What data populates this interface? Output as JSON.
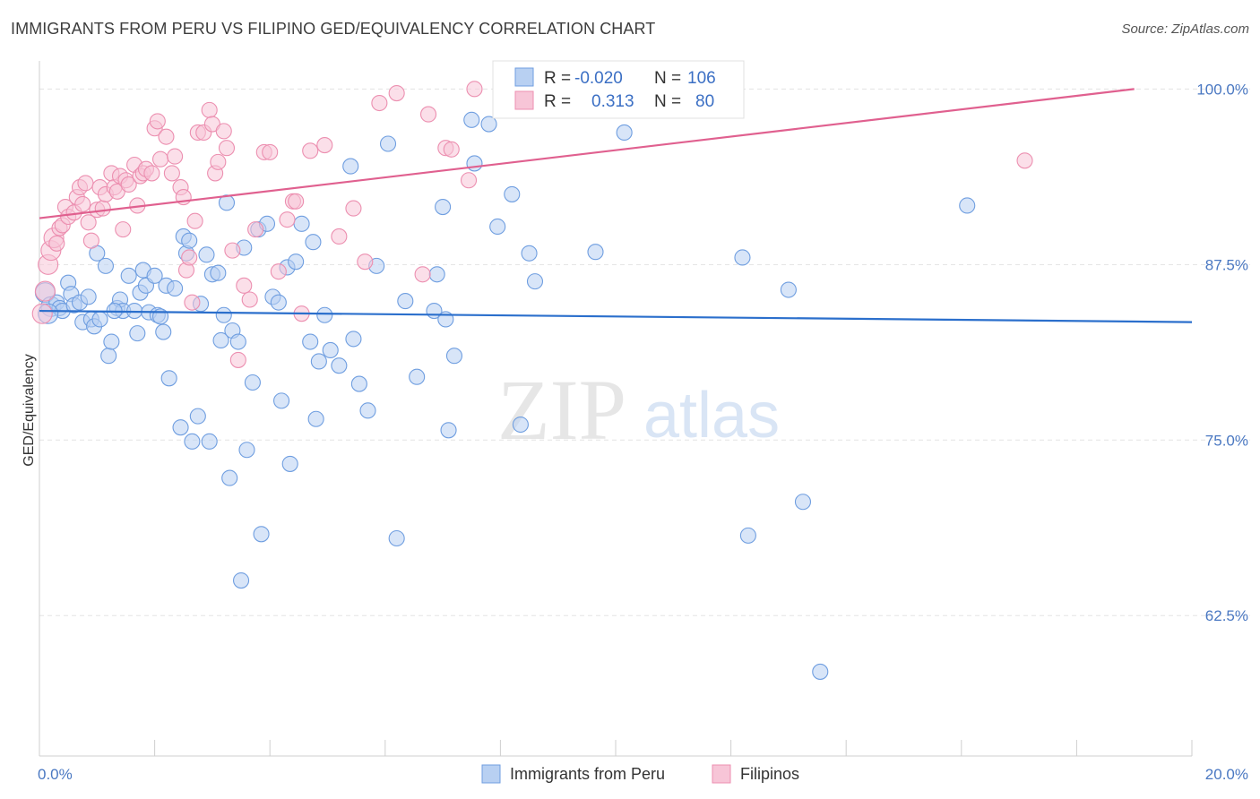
{
  "title": "IMMIGRANTS FROM PERU VS FILIPINO GED/EQUIVALENCY CORRELATION CHART",
  "source": "Source: ZipAtlas.com",
  "watermark": {
    "zip": "ZIP",
    "atlas": "atlas"
  },
  "chart_data": {
    "type": "scatter",
    "title": "IMMIGRANTS FROM PERU VS FILIPINO GED/EQUIVALENCY CORRELATION CHART",
    "xlabel": "",
    "ylabel": "GED/Equivalency",
    "xlim": [
      0,
      20
    ],
    "ylim": [
      52.5,
      102
    ],
    "x_tick_labels": [
      {
        "value": 0,
        "label": "0.0%"
      },
      {
        "value": 20,
        "label": "20.0%"
      }
    ],
    "y_tick_labels": [
      {
        "value": 100,
        "label": "100.0%"
      },
      {
        "value": 87.5,
        "label": "87.5%"
      },
      {
        "value": 75,
        "label": "75.0%"
      },
      {
        "value": 62.5,
        "label": "62.5%"
      }
    ],
    "legend": [
      {
        "r_label": "R =",
        "r_value": "-0.020",
        "n_label": "N =",
        "n_value": "106"
      },
      {
        "r_label": "R =",
        "r_value": "0.313",
        "n_label": "N =",
        "n_value": "80"
      }
    ],
    "series": [
      {
        "name": "Immigrants from Peru",
        "color": "#6f9ee0",
        "fill": "#b8d0f2",
        "trend": {
          "x0": 0,
          "y0": 84.2,
          "x1": 20,
          "y1": 83.4,
          "color": "#2b6fcc"
        },
        "points": [
          [
            0.1,
            85.5
          ],
          [
            0.2,
            84.5
          ],
          [
            0.3,
            84.8
          ],
          [
            0.35,
            84.4
          ],
          [
            0.4,
            84.2
          ],
          [
            0.5,
            86.2
          ],
          [
            0.55,
            85.4
          ],
          [
            0.6,
            84.6
          ],
          [
            0.7,
            84.8
          ],
          [
            0.75,
            83.4
          ],
          [
            0.85,
            85.2
          ],
          [
            0.9,
            83.6
          ],
          [
            0.95,
            83.1
          ],
          [
            1.0,
            88.3
          ],
          [
            1.05,
            83.6
          ],
          [
            1.15,
            87.4
          ],
          [
            1.2,
            81.0
          ],
          [
            1.25,
            82.0
          ],
          [
            1.35,
            84.4
          ],
          [
            1.4,
            85.0
          ],
          [
            1.45,
            84.2
          ],
          [
            1.55,
            86.7
          ],
          [
            1.65,
            84.2
          ],
          [
            1.7,
            82.6
          ],
          [
            1.75,
            85.5
          ],
          [
            1.8,
            87.1
          ],
          [
            1.85,
            86.0
          ],
          [
            1.9,
            84.1
          ],
          [
            2.0,
            86.7
          ],
          [
            2.05,
            83.9
          ],
          [
            2.1,
            83.8
          ],
          [
            2.15,
            82.7
          ],
          [
            2.2,
            86.0
          ],
          [
            2.25,
            79.4
          ],
          [
            2.35,
            85.8
          ],
          [
            2.45,
            75.9
          ],
          [
            2.5,
            89.5
          ],
          [
            2.55,
            88.3
          ],
          [
            2.6,
            89.2
          ],
          [
            2.65,
            74.9
          ],
          [
            2.75,
            76.7
          ],
          [
            2.8,
            84.7
          ],
          [
            2.9,
            88.2
          ],
          [
            2.95,
            74.9
          ],
          [
            3.0,
            86.8
          ],
          [
            3.1,
            86.9
          ],
          [
            3.15,
            82.1
          ],
          [
            3.2,
            83.9
          ],
          [
            3.25,
            91.9
          ],
          [
            3.3,
            72.3
          ],
          [
            3.35,
            82.8
          ],
          [
            3.45,
            82.0
          ],
          [
            3.55,
            88.7
          ],
          [
            3.6,
            74.3
          ],
          [
            3.7,
            79.1
          ],
          [
            3.8,
            90.0
          ],
          [
            3.85,
            68.3
          ],
          [
            3.95,
            90.4
          ],
          [
            4.05,
            85.2
          ],
          [
            4.15,
            84.8
          ],
          [
            4.2,
            77.8
          ],
          [
            4.3,
            87.3
          ],
          [
            4.35,
            73.3
          ],
          [
            4.45,
            87.7
          ],
          [
            4.55,
            90.4
          ],
          [
            4.7,
            82.0
          ],
          [
            4.75,
            89.1
          ],
          [
            4.8,
            76.5
          ],
          [
            4.85,
            80.6
          ],
          [
            4.95,
            83.9
          ],
          [
            5.05,
            81.4
          ],
          [
            5.2,
            80.3
          ],
          [
            5.4,
            94.5
          ],
          [
            5.45,
            82.2
          ],
          [
            5.55,
            79.0
          ],
          [
            5.7,
            77.1
          ],
          [
            5.85,
            87.4
          ],
          [
            6.05,
            96.1
          ],
          [
            6.2,
            68.0
          ],
          [
            6.35,
            84.9
          ],
          [
            6.55,
            79.5
          ],
          [
            6.85,
            84.2
          ],
          [
            6.9,
            86.8
          ],
          [
            7.0,
            91.6
          ],
          [
            7.05,
            83.6
          ],
          [
            7.1,
            75.7
          ],
          [
            7.2,
            81.0
          ],
          [
            7.5,
            97.8
          ],
          [
            7.55,
            94.7
          ],
          [
            7.8,
            97.5
          ],
          [
            7.95,
            90.2
          ],
          [
            8.2,
            92.5
          ],
          [
            8.35,
            76.1
          ],
          [
            8.5,
            88.3
          ],
          [
            8.6,
            86.3
          ],
          [
            9.65,
            88.4
          ],
          [
            10.15,
            96.9
          ],
          [
            3.5,
            65.0
          ],
          [
            12.2,
            88.0
          ],
          [
            12.3,
            68.2
          ],
          [
            13.0,
            85.7
          ],
          [
            13.25,
            70.6
          ],
          [
            13.55,
            58.5
          ],
          [
            16.1,
            91.7
          ],
          [
            0.15,
            84.0
          ],
          [
            1.3,
            84.2
          ]
        ]
      },
      {
        "name": "Filipinos",
        "color": "#ec8fb0",
        "fill": "#f7c5d7",
        "trend": {
          "x0": 0,
          "y0": 90.8,
          "x1": 19,
          "y1": 100.0,
          "color": "#e0608f"
        },
        "points": [
          [
            0.05,
            84.0
          ],
          [
            0.1,
            85.6
          ],
          [
            0.15,
            87.5
          ],
          [
            0.2,
            88.5
          ],
          [
            0.25,
            89.4
          ],
          [
            0.3,
            89.0
          ],
          [
            0.35,
            90.1
          ],
          [
            0.4,
            90.3
          ],
          [
            0.45,
            91.6
          ],
          [
            0.5,
            90.9
          ],
          [
            0.6,
            91.2
          ],
          [
            0.65,
            92.3
          ],
          [
            0.7,
            93.0
          ],
          [
            0.75,
            91.8
          ],
          [
            0.8,
            93.3
          ],
          [
            0.85,
            90.5
          ],
          [
            0.9,
            89.2
          ],
          [
            1.0,
            91.4
          ],
          [
            1.05,
            93.0
          ],
          [
            1.1,
            91.5
          ],
          [
            1.15,
            92.5
          ],
          [
            1.25,
            94.0
          ],
          [
            1.3,
            93.0
          ],
          [
            1.35,
            92.7
          ],
          [
            1.4,
            93.8
          ],
          [
            1.45,
            90.0
          ],
          [
            1.5,
            93.5
          ],
          [
            1.55,
            93.2
          ],
          [
            1.65,
            94.6
          ],
          [
            1.7,
            91.7
          ],
          [
            1.75,
            93.8
          ],
          [
            1.8,
            94.0
          ],
          [
            1.85,
            94.3
          ],
          [
            1.95,
            94.0
          ],
          [
            2.0,
            97.2
          ],
          [
            2.05,
            97.7
          ],
          [
            2.1,
            95.0
          ],
          [
            2.2,
            96.6
          ],
          [
            2.3,
            94.0
          ],
          [
            2.35,
            95.2
          ],
          [
            2.45,
            93.0
          ],
          [
            2.5,
            92.3
          ],
          [
            2.55,
            87.1
          ],
          [
            2.6,
            88.0
          ],
          [
            2.65,
            84.8
          ],
          [
            2.7,
            90.6
          ],
          [
            2.75,
            96.9
          ],
          [
            2.85,
            96.9
          ],
          [
            2.95,
            98.5
          ],
          [
            3.0,
            97.5
          ],
          [
            3.05,
            94.0
          ],
          [
            3.1,
            94.8
          ],
          [
            3.2,
            97.0
          ],
          [
            3.25,
            95.8
          ],
          [
            3.35,
            88.5
          ],
          [
            3.45,
            80.7
          ],
          [
            3.55,
            86.0
          ],
          [
            3.65,
            85.0
          ],
          [
            3.75,
            90.0
          ],
          [
            3.9,
            95.5
          ],
          [
            4.0,
            95.5
          ],
          [
            4.15,
            87.0
          ],
          [
            4.3,
            90.7
          ],
          [
            4.4,
            92.0
          ],
          [
            4.45,
            92.0
          ],
          [
            4.55,
            84.0
          ],
          [
            4.7,
            95.6
          ],
          [
            4.95,
            96.0
          ],
          [
            5.2,
            89.5
          ],
          [
            5.45,
            91.5
          ],
          [
            5.65,
            87.7
          ],
          [
            5.9,
            99.0
          ],
          [
            6.2,
            99.7
          ],
          [
            6.65,
            86.8
          ],
          [
            6.75,
            98.2
          ],
          [
            7.05,
            95.8
          ],
          [
            7.15,
            95.7
          ],
          [
            7.45,
            93.5
          ],
          [
            7.55,
            100.0
          ],
          [
            17.1,
            94.9
          ]
        ]
      }
    ]
  },
  "bottom_legend": [
    {
      "label": "Immigrants from Peru"
    },
    {
      "label": "Filipinos"
    }
  ]
}
